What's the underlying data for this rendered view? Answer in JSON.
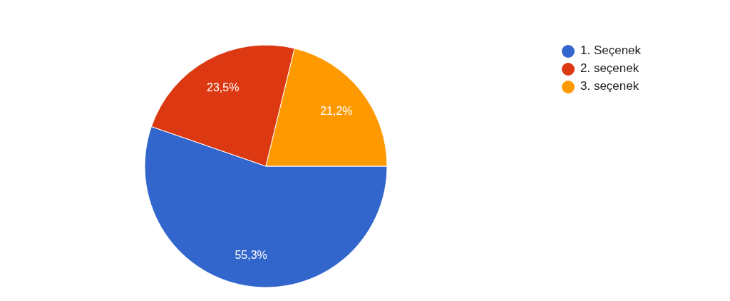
{
  "chart_data": {
    "type": "pie",
    "categories": [
      "1. Seçenek",
      "2. seçenek",
      "3. seçenek"
    ],
    "values": [
      55.3,
      23.5,
      21.2
    ],
    "value_labels": [
      "55,3%",
      "23,5%",
      "21,2%"
    ],
    "colors": [
      "#3366cc",
      "#dc3912",
      "#ff9900"
    ],
    "legend": "top right"
  }
}
